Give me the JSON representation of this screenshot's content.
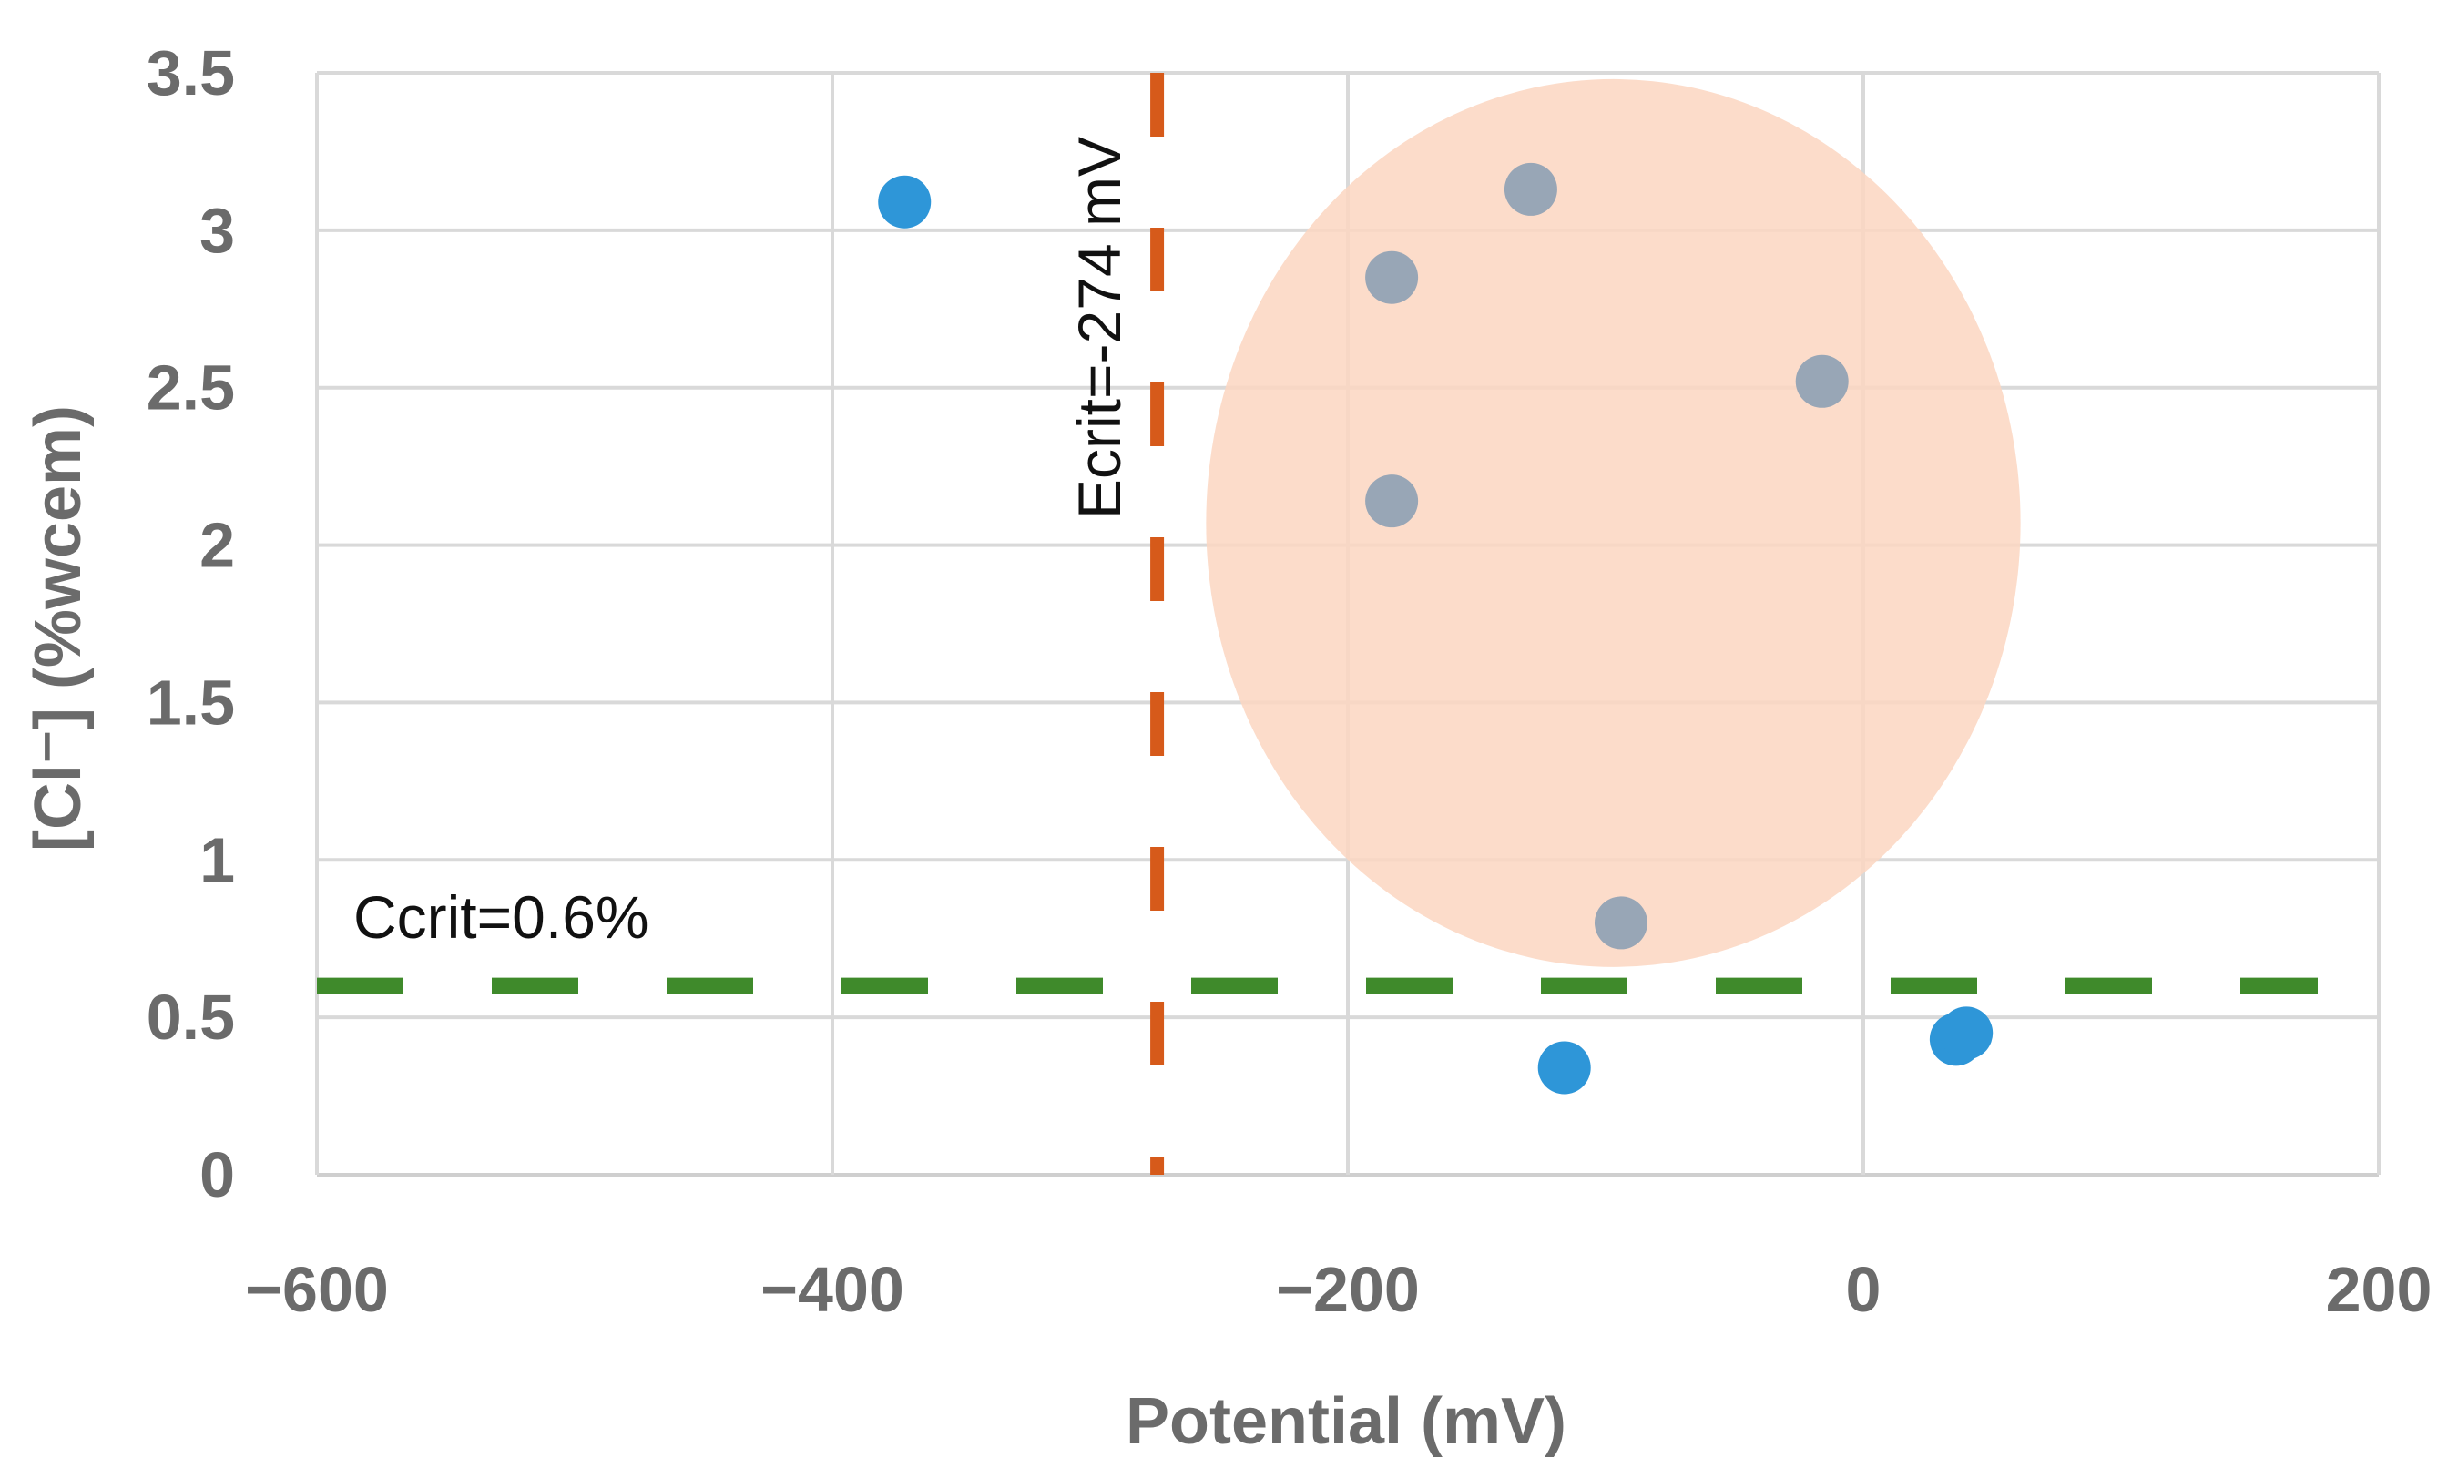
{
  "chart_data": {
    "type": "scatter",
    "xlabel": "Potential (mV)",
    "ylabel": "[Cl⁻] (%wcem)",
    "xlim": [
      -600,
      200
    ],
    "ylim": [
      0,
      3.5
    ],
    "x_ticks": [
      "−600",
      "−400",
      "−200",
      "0",
      "200"
    ],
    "y_ticks": [
      "0",
      "0.5",
      "1",
      "1.5",
      "2",
      "2.5",
      "3",
      "3.5"
    ],
    "grid": true,
    "series": [
      {
        "name": "blue",
        "color": "#2e96d8",
        "points": [
          {
            "x": -372,
            "y": 3.09
          },
          {
            "x": -116,
            "y": 0.34
          },
          {
            "x": 36,
            "y": 0.43
          },
          {
            "x": 40,
            "y": 0.45
          }
        ]
      },
      {
        "name": "grey",
        "color": "#98a6b6",
        "points": [
          {
            "x": -129,
            "y": 3.13
          },
          {
            "x": -183,
            "y": 2.85
          },
          {
            "x": -16,
            "y": 2.52
          },
          {
            "x": -183,
            "y": 2.14
          },
          {
            "x": -94,
            "y": 0.8
          }
        ]
      }
    ],
    "highlight_region": {
      "center_x": -97,
      "center_y": 2.07,
      "radius_x": 158,
      "radius_y": 1.41,
      "color": "#fbd6c1"
    },
    "reference_lines": {
      "vertical": {
        "x": -274,
        "label": "Ecrit=-274 mV",
        "color": "#d65a1a"
      },
      "horizontal": {
        "y": 0.6,
        "label": "Ccrit=0.6%",
        "color": "#3f8a2b"
      }
    }
  }
}
